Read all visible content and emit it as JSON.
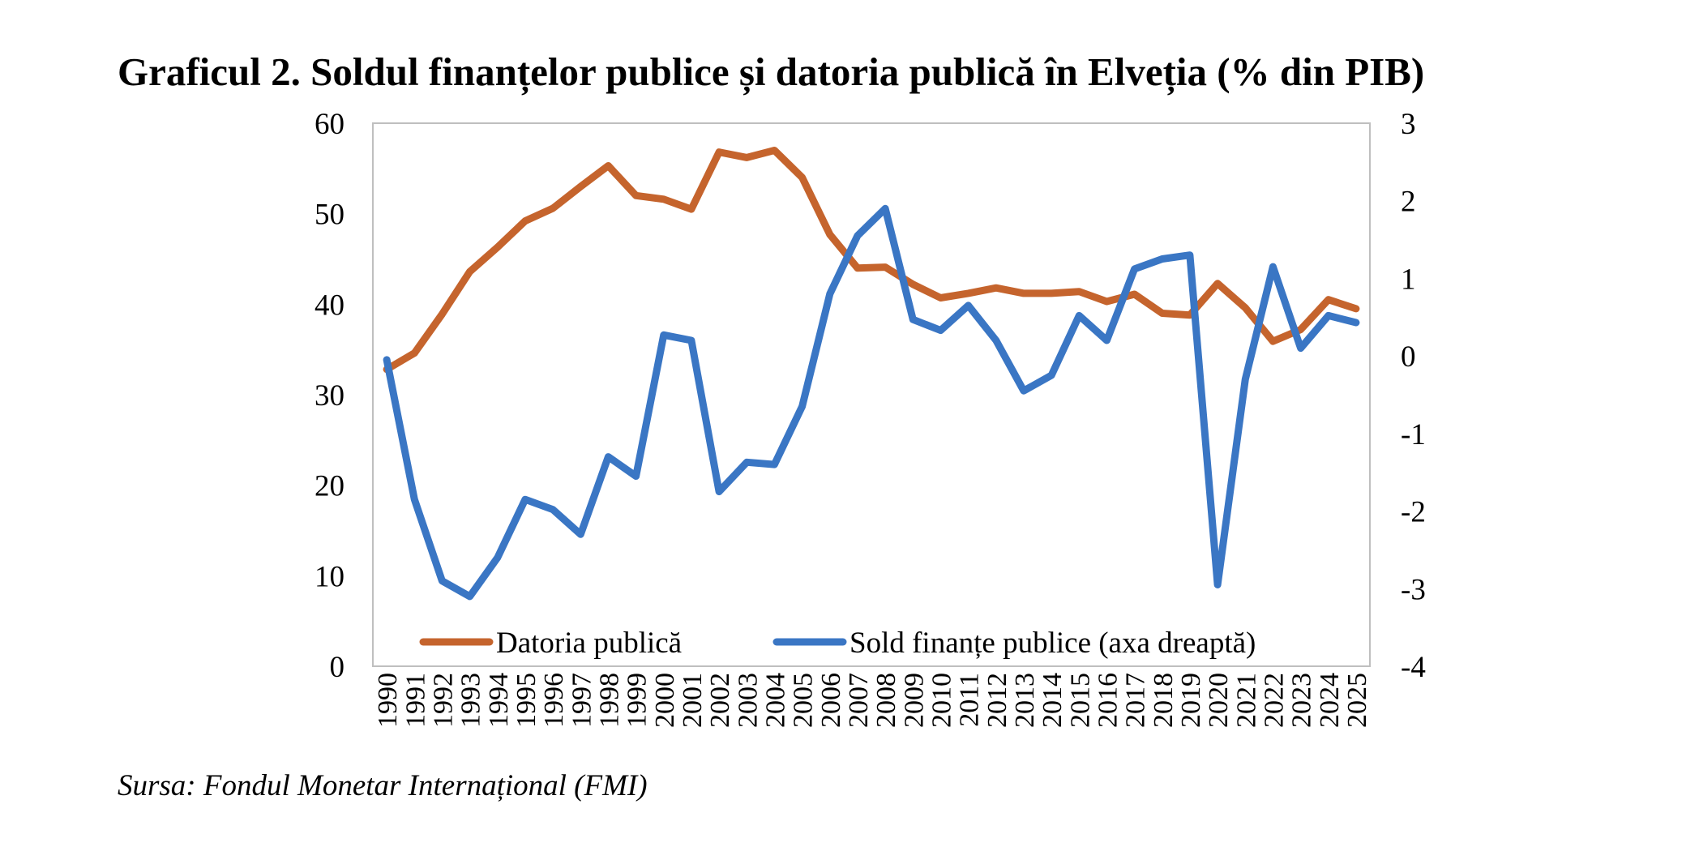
{
  "chart_data": {
    "type": "line",
    "title": "Graficul 2. Soldul finanțelor publice și datoria publică în Elveția (% din PIB)",
    "source": "Sursa: Fondul Monetar Internațional (FMI)",
    "categories": [
      "1990",
      "1991",
      "1992",
      "1993",
      "1994",
      "1995",
      "1996",
      "1997",
      "1998",
      "1999",
      "2000",
      "2001",
      "2002",
      "2003",
      "2004",
      "2005",
      "2006",
      "2007",
      "2008",
      "2009",
      "2010",
      "2011",
      "2012",
      "2013",
      "2014",
      "2015",
      "2016",
      "2017",
      "2018",
      "2019",
      "2020",
      "2021",
      "2022",
      "2023",
      "2024",
      "2025"
    ],
    "series": [
      {
        "name": "Datoria publică",
        "axis": "left",
        "color": "#C5642D",
        "values": [
          32.8,
          34.6,
          38.9,
          43.6,
          46.3,
          49.2,
          50.6,
          53.0,
          55.3,
          52.0,
          51.6,
          50.5,
          56.8,
          56.2,
          57.0,
          54.0,
          47.7,
          44.0,
          44.1,
          42.2,
          40.7,
          41.2,
          41.8,
          41.2,
          41.2,
          41.4,
          40.3,
          41.1,
          39.0,
          38.8,
          42.3,
          39.6,
          35.9,
          37.2,
          40.5,
          39.5
        ]
      },
      {
        "name": "Sold finanțe publice (axa dreaptă)",
        "axis": "right",
        "color": "#3A76C4",
        "values": [
          -0.05,
          -1.85,
          -2.9,
          -3.1,
          -2.6,
          -1.85,
          -1.98,
          -2.3,
          -1.3,
          -1.55,
          0.27,
          0.2,
          -1.75,
          -1.37,
          -1.4,
          -0.65,
          0.8,
          1.55,
          1.9,
          0.47,
          0.33,
          0.65,
          0.2,
          -0.45,
          -0.25,
          0.52,
          0.2,
          1.12,
          1.25,
          1.3,
          -2.95,
          -0.3,
          1.15,
          0.1,
          0.52,
          0.43
        ]
      }
    ],
    "y_left": {
      "min": 0,
      "max": 60,
      "ticks": [
        "60",
        "50",
        "40",
        "30",
        "20",
        "10",
        "0"
      ]
    },
    "y_right": {
      "min": -4,
      "max": 3,
      "ticks": [
        "3",
        "2",
        "1",
        "0",
        "-1",
        "-2",
        "-3",
        "-4"
      ]
    },
    "grid": false,
    "legend": "bottom-inside"
  }
}
